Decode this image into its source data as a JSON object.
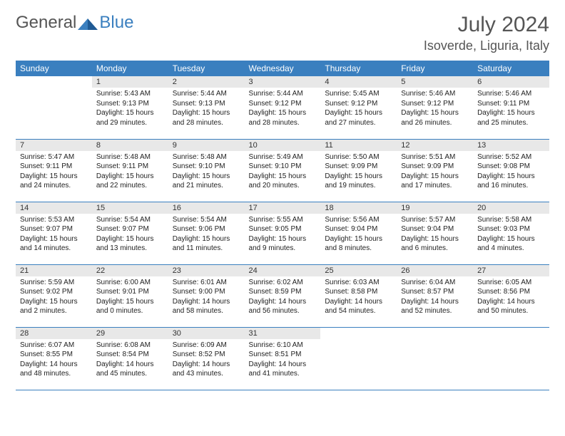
{
  "logo": {
    "text1": "General",
    "text2": "Blue"
  },
  "title": "July 2024",
  "location": "Isoverde, Liguria, Italy",
  "colors": {
    "header_bg": "#3a7fbf",
    "header_text": "#ffffff",
    "daynum_bg": "#e8e8e8",
    "border": "#3a7fbf",
    "body_text": "#222222"
  },
  "dayHeaders": [
    "Sunday",
    "Monday",
    "Tuesday",
    "Wednesday",
    "Thursday",
    "Friday",
    "Saturday"
  ],
  "weeks": [
    [
      {
        "n": "",
        "sunrise": "",
        "sunset": "",
        "daylight": ""
      },
      {
        "n": "1",
        "sunrise": "Sunrise: 5:43 AM",
        "sunset": "Sunset: 9:13 PM",
        "daylight": "Daylight: 15 hours and 29 minutes."
      },
      {
        "n": "2",
        "sunrise": "Sunrise: 5:44 AM",
        "sunset": "Sunset: 9:13 PM",
        "daylight": "Daylight: 15 hours and 28 minutes."
      },
      {
        "n": "3",
        "sunrise": "Sunrise: 5:44 AM",
        "sunset": "Sunset: 9:12 PM",
        "daylight": "Daylight: 15 hours and 28 minutes."
      },
      {
        "n": "4",
        "sunrise": "Sunrise: 5:45 AM",
        "sunset": "Sunset: 9:12 PM",
        "daylight": "Daylight: 15 hours and 27 minutes."
      },
      {
        "n": "5",
        "sunrise": "Sunrise: 5:46 AM",
        "sunset": "Sunset: 9:12 PM",
        "daylight": "Daylight: 15 hours and 26 minutes."
      },
      {
        "n": "6",
        "sunrise": "Sunrise: 5:46 AM",
        "sunset": "Sunset: 9:11 PM",
        "daylight": "Daylight: 15 hours and 25 minutes."
      }
    ],
    [
      {
        "n": "7",
        "sunrise": "Sunrise: 5:47 AM",
        "sunset": "Sunset: 9:11 PM",
        "daylight": "Daylight: 15 hours and 24 minutes."
      },
      {
        "n": "8",
        "sunrise": "Sunrise: 5:48 AM",
        "sunset": "Sunset: 9:11 PM",
        "daylight": "Daylight: 15 hours and 22 minutes."
      },
      {
        "n": "9",
        "sunrise": "Sunrise: 5:48 AM",
        "sunset": "Sunset: 9:10 PM",
        "daylight": "Daylight: 15 hours and 21 minutes."
      },
      {
        "n": "10",
        "sunrise": "Sunrise: 5:49 AM",
        "sunset": "Sunset: 9:10 PM",
        "daylight": "Daylight: 15 hours and 20 minutes."
      },
      {
        "n": "11",
        "sunrise": "Sunrise: 5:50 AM",
        "sunset": "Sunset: 9:09 PM",
        "daylight": "Daylight: 15 hours and 19 minutes."
      },
      {
        "n": "12",
        "sunrise": "Sunrise: 5:51 AM",
        "sunset": "Sunset: 9:09 PM",
        "daylight": "Daylight: 15 hours and 17 minutes."
      },
      {
        "n": "13",
        "sunrise": "Sunrise: 5:52 AM",
        "sunset": "Sunset: 9:08 PM",
        "daylight": "Daylight: 15 hours and 16 minutes."
      }
    ],
    [
      {
        "n": "14",
        "sunrise": "Sunrise: 5:53 AM",
        "sunset": "Sunset: 9:07 PM",
        "daylight": "Daylight: 15 hours and 14 minutes."
      },
      {
        "n": "15",
        "sunrise": "Sunrise: 5:54 AM",
        "sunset": "Sunset: 9:07 PM",
        "daylight": "Daylight: 15 hours and 13 minutes."
      },
      {
        "n": "16",
        "sunrise": "Sunrise: 5:54 AM",
        "sunset": "Sunset: 9:06 PM",
        "daylight": "Daylight: 15 hours and 11 minutes."
      },
      {
        "n": "17",
        "sunrise": "Sunrise: 5:55 AM",
        "sunset": "Sunset: 9:05 PM",
        "daylight": "Daylight: 15 hours and 9 minutes."
      },
      {
        "n": "18",
        "sunrise": "Sunrise: 5:56 AM",
        "sunset": "Sunset: 9:04 PM",
        "daylight": "Daylight: 15 hours and 8 minutes."
      },
      {
        "n": "19",
        "sunrise": "Sunrise: 5:57 AM",
        "sunset": "Sunset: 9:04 PM",
        "daylight": "Daylight: 15 hours and 6 minutes."
      },
      {
        "n": "20",
        "sunrise": "Sunrise: 5:58 AM",
        "sunset": "Sunset: 9:03 PM",
        "daylight": "Daylight: 15 hours and 4 minutes."
      }
    ],
    [
      {
        "n": "21",
        "sunrise": "Sunrise: 5:59 AM",
        "sunset": "Sunset: 9:02 PM",
        "daylight": "Daylight: 15 hours and 2 minutes."
      },
      {
        "n": "22",
        "sunrise": "Sunrise: 6:00 AM",
        "sunset": "Sunset: 9:01 PM",
        "daylight": "Daylight: 15 hours and 0 minutes."
      },
      {
        "n": "23",
        "sunrise": "Sunrise: 6:01 AM",
        "sunset": "Sunset: 9:00 PM",
        "daylight": "Daylight: 14 hours and 58 minutes."
      },
      {
        "n": "24",
        "sunrise": "Sunrise: 6:02 AM",
        "sunset": "Sunset: 8:59 PM",
        "daylight": "Daylight: 14 hours and 56 minutes."
      },
      {
        "n": "25",
        "sunrise": "Sunrise: 6:03 AM",
        "sunset": "Sunset: 8:58 PM",
        "daylight": "Daylight: 14 hours and 54 minutes."
      },
      {
        "n": "26",
        "sunrise": "Sunrise: 6:04 AM",
        "sunset": "Sunset: 8:57 PM",
        "daylight": "Daylight: 14 hours and 52 minutes."
      },
      {
        "n": "27",
        "sunrise": "Sunrise: 6:05 AM",
        "sunset": "Sunset: 8:56 PM",
        "daylight": "Daylight: 14 hours and 50 minutes."
      }
    ],
    [
      {
        "n": "28",
        "sunrise": "Sunrise: 6:07 AM",
        "sunset": "Sunset: 8:55 PM",
        "daylight": "Daylight: 14 hours and 48 minutes."
      },
      {
        "n": "29",
        "sunrise": "Sunrise: 6:08 AM",
        "sunset": "Sunset: 8:54 PM",
        "daylight": "Daylight: 14 hours and 45 minutes."
      },
      {
        "n": "30",
        "sunrise": "Sunrise: 6:09 AM",
        "sunset": "Sunset: 8:52 PM",
        "daylight": "Daylight: 14 hours and 43 minutes."
      },
      {
        "n": "31",
        "sunrise": "Sunrise: 6:10 AM",
        "sunset": "Sunset: 8:51 PM",
        "daylight": "Daylight: 14 hours and 41 minutes."
      },
      {
        "n": "",
        "sunrise": "",
        "sunset": "",
        "daylight": ""
      },
      {
        "n": "",
        "sunrise": "",
        "sunset": "",
        "daylight": ""
      },
      {
        "n": "",
        "sunrise": "",
        "sunset": "",
        "daylight": ""
      }
    ]
  ]
}
